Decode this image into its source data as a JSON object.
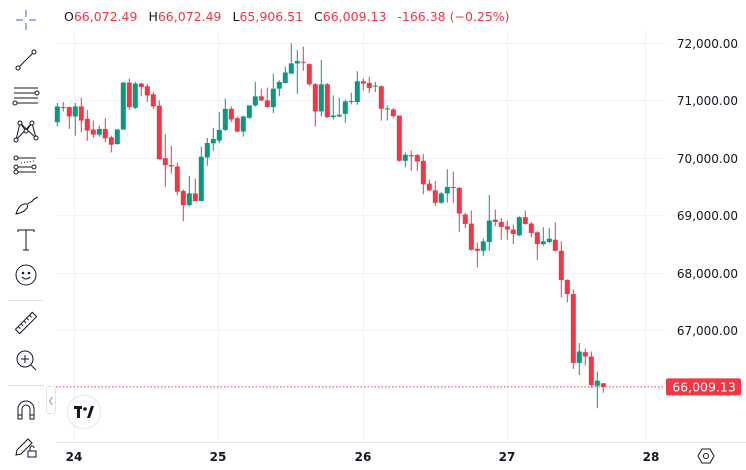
{
  "legend": {
    "open_label": "O",
    "open": "66,072.49",
    "high_label": "H",
    "high": "66,072.49",
    "low_label": "L",
    "low": "65,906.51",
    "close_label": "C",
    "close": "66,009.13",
    "change": "-166.38 (−0.25%)"
  },
  "toolbar": {
    "tools": [
      "crosshair-icon",
      "trend-line-icon",
      "fib-retracement-icon",
      "xabcd-pattern-icon",
      "forecast-icon",
      "brush-icon",
      "text-icon",
      "emoji-icon",
      "ruler-icon",
      "zoom-in-icon",
      "magnet-icon",
      "lock-drawings-icon"
    ]
  },
  "colors": {
    "up": "#089981",
    "down": "#f23645",
    "grid": "#f0f3fa",
    "price_label_bg": "#f23645"
  },
  "current_price_label": "66,009.13",
  "chart_data": {
    "type": "candlestick",
    "interval_hint": "hourly",
    "y_ticks": [
      "72,000.00",
      "71,000.00",
      "70,000.00",
      "69,000.00",
      "68,000.00",
      "67,000.00"
    ],
    "y_tick_values": [
      72000,
      71000,
      70000,
      69000,
      68000,
      67000
    ],
    "x_ticks": [
      "24",
      "25",
      "26",
      "27",
      "28"
    ],
    "grid": true,
    "current_price": 66009.13,
    "ohlc": [
      [
        70620,
        70954,
        70544,
        70895
      ],
      [
        70883,
        70971,
        70807,
        70872
      ],
      [
        70883,
        70895,
        70503,
        70720
      ],
      [
        70720,
        70954,
        70386,
        70895
      ],
      [
        70895,
        71047,
        70445,
        70650
      ],
      [
        70679,
        70837,
        70299,
        70474
      ],
      [
        70492,
        70650,
        70345,
        70404
      ],
      [
        70404,
        70562,
        70369,
        70503
      ],
      [
        70503,
        70690,
        70269,
        70340
      ],
      [
        70357,
        70386,
        70094,
        70228
      ],
      [
        70240,
        70503,
        70228,
        70492
      ],
      [
        70492,
        71322,
        70486,
        71310
      ],
      [
        71310,
        71380,
        70837,
        70883
      ],
      [
        70872,
        71322,
        70848,
        71293
      ],
      [
        71293,
        71304,
        71071,
        71234
      ],
      [
        71246,
        71293,
        70971,
        71088
      ],
      [
        71106,
        71147,
        70854,
        70895
      ],
      [
        70907,
        71000,
        69971,
        69977
      ],
      [
        69994,
        70416,
        69497,
        69872
      ],
      [
        69872,
        70211,
        69726,
        69848
      ],
      [
        69848,
        69918,
        69351,
        69410
      ],
      [
        69421,
        69451,
        68895,
        69176
      ],
      [
        69176,
        69685,
        69147,
        69380
      ],
      [
        69380,
        69638,
        69246,
        69246
      ],
      [
        69246,
        70193,
        69246,
        70018
      ],
      [
        70006,
        70345,
        69860,
        70258
      ],
      [
        70252,
        70521,
        70123,
        70328
      ],
      [
        70299,
        70796,
        70252,
        70486
      ],
      [
        70486,
        71033,
        70462,
        70854
      ],
      [
        70854,
        70895,
        70620,
        70667
      ],
      [
        70690,
        70720,
        70445,
        70457
      ],
      [
        70457,
        70737,
        70369,
        70720
      ],
      [
        70696,
        70913,
        70679,
        70913
      ],
      [
        70913,
        71322,
        70895,
        71071
      ],
      [
        71071,
        71205,
        70983,
        71000
      ],
      [
        71000,
        71223,
        70883,
        70883
      ],
      [
        70883,
        71468,
        70778,
        71205
      ],
      [
        71205,
        71351,
        71071,
        71322
      ],
      [
        71304,
        71585,
        71293,
        71486
      ],
      [
        71468,
        71995,
        71456,
        71644
      ],
      [
        71644,
        71878,
        71117,
        71685
      ],
      [
        71673,
        71936,
        71515,
        71661
      ],
      [
        71632,
        71644,
        71252,
        71281
      ],
      [
        71281,
        71304,
        70544,
        70807
      ],
      [
        70807,
        71702,
        70720,
        71281
      ],
      [
        71281,
        71304,
        70696,
        70708
      ],
      [
        70708,
        71088,
        70667,
        70737
      ],
      [
        70720,
        71047,
        70708,
        70749
      ],
      [
        70766,
        71012,
        70609,
        70983
      ],
      [
        70971,
        71135,
        70930,
        70989
      ],
      [
        70971,
        71509,
        70924,
        71334
      ],
      [
        71334,
        71380,
        71176,
        71293
      ],
      [
        71304,
        71410,
        71129,
        71217
      ],
      [
        71246,
        71322,
        71146,
        71258
      ],
      [
        71246,
        71263,
        70649,
        70854
      ],
      [
        70848,
        70913,
        70649,
        70860
      ],
      [
        70842,
        70866,
        70696,
        70725
      ],
      [
        70737,
        70737,
        69930,
        69948
      ],
      [
        69948,
        70094,
        69831,
        70053
      ],
      [
        70047,
        70123,
        69772,
        70024
      ],
      [
        70047,
        70065,
        69772,
        69936
      ],
      [
        69948,
        70065,
        69363,
        69538
      ],
      [
        69550,
        69626,
        69421,
        69433
      ],
      [
        69433,
        69597,
        69158,
        69217
      ],
      [
        69217,
        69404,
        69199,
        69380
      ],
      [
        69380,
        69801,
        69217,
        69491
      ],
      [
        69491,
        69760,
        69217,
        69474
      ],
      [
        69474,
        69491,
        68708,
        69029
      ],
      [
        69012,
        69041,
        68778,
        68848
      ],
      [
        68854,
        69082,
        68380,
        68398
      ],
      [
        68415,
        68527,
        68088,
        68380
      ],
      [
        68380,
        68591,
        68293,
        68544
      ],
      [
        68532,
        69351,
        68380,
        68907
      ],
      [
        68924,
        69100,
        68807,
        68883
      ],
      [
        68883,
        68953,
        68573,
        68796
      ],
      [
        68807,
        68907,
        68573,
        68749
      ],
      [
        68749,
        68836,
        68497,
        68673
      ],
      [
        68649,
        68983,
        68632,
        68965
      ],
      [
        68965,
        69082,
        68836,
        68848
      ],
      [
        68854,
        68883,
        68614,
        68690
      ],
      [
        68702,
        68719,
        68222,
        68497
      ],
      [
        68497,
        68790,
        68468,
        68544
      ],
      [
        68532,
        68778,
        68515,
        68591
      ],
      [
        68573,
        68877,
        68369,
        68380
      ],
      [
        68380,
        68544,
        67568,
        67871
      ],
      [
        67871,
        67883,
        67480,
        67626
      ],
      [
        67626,
        67708,
        66322,
        66427
      ],
      [
        66427,
        66772,
        66217,
        66626
      ],
      [
        66614,
        66673,
        66380,
        66538
      ],
      [
        66538,
        66626,
        66000,
        66041
      ],
      [
        66029,
        66275,
        65637,
        66117
      ],
      [
        66072.49,
        66072.49,
        65906.51,
        66009.13
      ]
    ]
  }
}
